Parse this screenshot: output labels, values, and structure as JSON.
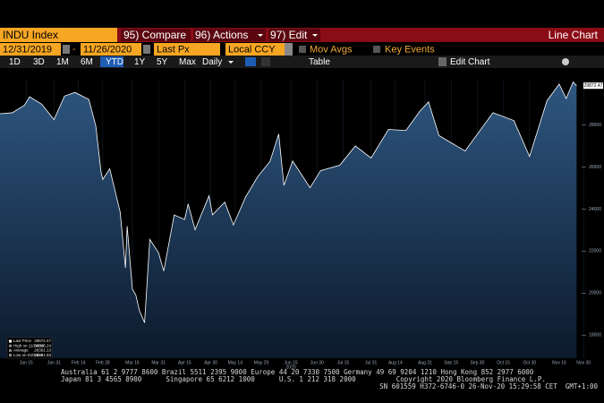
{
  "header": {
    "ticker": "INDU Index",
    "compare": "95) Compare",
    "actions": "96) Actions",
    "edit": "97) Edit",
    "view": "Line Chart"
  },
  "controls": {
    "start_date": "12/31/2019",
    "end_date": "11/26/2020",
    "field": "Last Px",
    "currency": "Local CCY",
    "mov_avgs": "Mov Avgs",
    "key_events": "Key Events",
    "periods": [
      "1D",
      "3D",
      "1M",
      "6M",
      "YTD",
      "1Y",
      "5Y",
      "Max"
    ],
    "active_period_index": 4,
    "frequency": "Daily",
    "table": "Table",
    "edit_chart": "Edit Chart"
  },
  "chart": {
    "type": "area",
    "color": "#ffffff",
    "x": [
      "2019-12-31",
      "2020-01-07",
      "2020-01-14",
      "2020-01-17",
      "2020-01-24",
      "2020-01-31",
      "2020-02-06",
      "2020-02-12",
      "2020-02-20",
      "2020-02-24",
      "2020-02-27",
      "2020-02-28",
      "2020-03-03",
      "2020-03-09",
      "2020-03-12",
      "2020-03-13",
      "2020-03-16",
      "2020-03-18",
      "2020-03-20",
      "2020-03-23",
      "2020-03-26",
      "2020-03-31",
      "2020-04-03",
      "2020-04-09",
      "2020-04-15",
      "2020-04-17",
      "2020-04-21",
      "2020-04-29",
      "2020-05-01",
      "2020-05-08",
      "2020-05-13",
      "2020-05-20",
      "2020-05-27",
      "2020-06-03",
      "2020-06-08",
      "2020-06-11",
      "2020-06-16",
      "2020-06-26",
      "2020-07-02",
      "2020-07-13",
      "2020-07-22",
      "2020-07-31",
      "2020-08-10",
      "2020-08-20",
      "2020-08-28",
      "2020-09-02",
      "2020-09-08",
      "2020-09-23",
      "2020-10-09",
      "2020-10-21",
      "2020-10-30",
      "2020-11-09",
      "2020-11-16",
      "2020-11-20",
      "2020-11-24",
      "2020-11-26"
    ],
    "values": [
      28538,
      28583,
      28940,
      29348,
      28989,
      28256,
      29379,
      29551,
      29219,
      27960,
      25766,
      25409,
      25917,
      23851,
      21200,
      23185,
      20188,
      19898,
      19173,
      18592,
      22552,
      21917,
      21052,
      23719,
      23504,
      24242,
      23018,
      24633,
      23723,
      24331,
      23247,
      24575,
      25548,
      26269,
      27572,
      25128,
      26290,
      25015,
      25827,
      26086,
      27005,
      26428,
      27791,
      27739,
      28653,
      29100,
      27500,
      26763,
      28586,
      28210,
      26502,
      29157,
      29950,
      29263,
      30046,
      29872
    ],
    "xlim": [
      "2019-12-31",
      "2020-12-03"
    ],
    "xticks": [
      {
        "value": "2020-01-15",
        "label": "Jan 15"
      },
      {
        "value": "2020-01-31",
        "label": "Jan 31"
      },
      {
        "value": "2020-02-14",
        "label": "Feb 14"
      },
      {
        "value": "2020-02-28",
        "label": "Feb 28"
      },
      {
        "value": "2020-03-16",
        "label": "Mar 16"
      },
      {
        "value": "2020-03-31",
        "label": "Mar 31"
      },
      {
        "value": "2020-04-15",
        "label": "Apr 15"
      },
      {
        "value": "2020-04-30",
        "label": "Apr 30"
      },
      {
        "value": "2020-05-14",
        "label": "May 14"
      },
      {
        "value": "2020-05-29",
        "label": "May 29"
      },
      {
        "value": "2020-06-15",
        "label": "Jun 15"
      },
      {
        "value": "2020-06-30",
        "label": "Jun 30"
      },
      {
        "value": "2020-07-15",
        "label": "Jul 15"
      },
      {
        "value": "2020-07-31",
        "label": "Jul 31"
      },
      {
        "value": "2020-08-14",
        "label": "Aug 14"
      },
      {
        "value": "2020-08-31",
        "label": "Aug 31"
      },
      {
        "value": "2020-09-15",
        "label": "Sep 15"
      },
      {
        "value": "2020-09-30",
        "label": "Sep 30"
      },
      {
        "value": "2020-10-15",
        "label": "Oct 15"
      },
      {
        "value": "2020-10-30",
        "label": "Oct 30"
      },
      {
        "value": "2020-11-16",
        "label": "Nov 16"
      },
      {
        "value": "2020-11-30",
        "label": "Nov 30"
      }
    ],
    "x_year": "2020",
    "ylim": [
      16900,
      30200
    ],
    "yticks": [
      18000,
      20000,
      22000,
      24000,
      26000,
      28000
    ],
    "last_label": "29872.47",
    "legend": [
      {
        "label": "Last Price",
        "value": "29872.47"
      },
      {
        "label": "High on 11/24/20",
        "value": "30046.24"
      },
      {
        "label": "Average",
        "value": "26361.13"
      },
      {
        "label": "Low on 03/23/20",
        "value": "18591.93"
      }
    ]
  },
  "footer": {
    "lines": [
      "Australia 61 2 9777 8600 Brazil 5511 2395 9000 Europe 44 20 7330 7500 Germany 49 69 9204 1210 Hong Kong 852 2977 6000",
      "Japan 81 3 4565 8900      Singapore 65 6212 1000      U.S. 1 212 318 2000          Copyright 2020 Bloomberg Finance L.P.",
      "SN 601559 H372-6746-0 26-Nov-20 15:29:58 CET  GMT+1:00"
    ]
  }
}
